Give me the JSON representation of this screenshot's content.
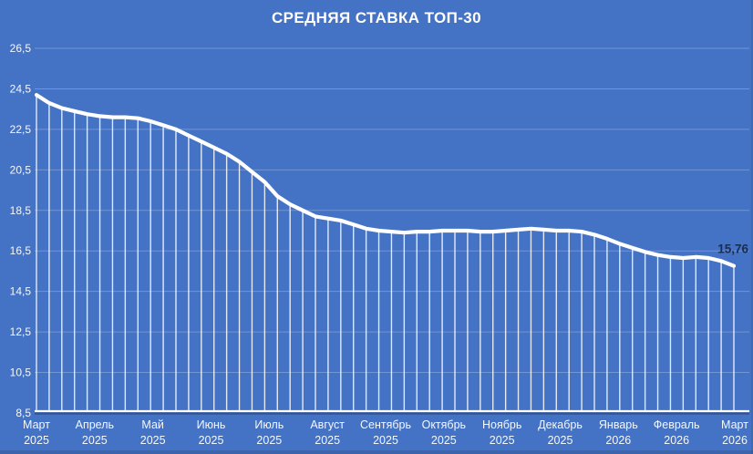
{
  "chart_data": {
    "type": "line",
    "title": "СРЕДНЯЯ СТАВКА ТОП-30",
    "legend": "none",
    "grid": "horizontal",
    "y_axis": {
      "min": 8.5,
      "max": 26.5,
      "step": 2,
      "tick_labels": [
        "26,5",
        "24,5",
        "22,5",
        "20,5",
        "18,5",
        "16,5",
        "14,5",
        "12,5",
        "10,5",
        "8,5"
      ]
    },
    "x_axis": {
      "tick_labels": [
        {
          "month": "Март",
          "year": "2025"
        },
        {
          "month": "Апрель",
          "year": "2025"
        },
        {
          "month": "Май",
          "year": "2025"
        },
        {
          "month": "Июнь",
          "year": "2025"
        },
        {
          "month": "Июль",
          "year": "2025"
        },
        {
          "month": "Август",
          "year": "2025"
        },
        {
          "month": "Сентябрь",
          "year": "2025"
        },
        {
          "month": "Октябрь",
          "year": "2025"
        },
        {
          "month": "Ноябрь",
          "year": "2025"
        },
        {
          "month": "Декабрь",
          "year": "2025"
        },
        {
          "month": "Январь",
          "year": "2026"
        },
        {
          "month": "Февраль",
          "year": "2026"
        },
        {
          "month": "Март",
          "year": "2026"
        }
      ]
    },
    "series": [
      {
        "name": "Средняя ставка ТОП-30",
        "values": [
          24.2,
          23.8,
          23.55,
          23.4,
          23.25,
          23.15,
          23.1,
          23.1,
          23.05,
          22.9,
          22.7,
          22.5,
          22.2,
          21.9,
          21.6,
          21.3,
          20.9,
          20.4,
          19.9,
          19.2,
          18.8,
          18.5,
          18.2,
          18.1,
          18.0,
          17.8,
          17.6,
          17.5,
          17.45,
          17.4,
          17.45,
          17.45,
          17.5,
          17.5,
          17.5,
          17.45,
          17.45,
          17.5,
          17.55,
          17.6,
          17.55,
          17.5,
          17.5,
          17.45,
          17.3,
          17.1,
          16.85,
          16.65,
          16.45,
          16.3,
          16.2,
          16.15,
          16.2,
          16.15,
          16.0,
          15.76
        ]
      }
    ],
    "last_point_label": "15,76",
    "style": {
      "background": "#4472C4",
      "line_color": "#FFFFFF",
      "grid_color": "rgba(255,255,255,0.25)",
      "drop_line_color": "rgba(255,255,255,0.85)",
      "axis_line_color": "#FFFFFF",
      "axis_shadow_color": "rgba(30,53,96,0.5)",
      "tick_label_color": "rgba(255,255,255,0.95)",
      "data_label_color": "#1A2D52"
    }
  }
}
